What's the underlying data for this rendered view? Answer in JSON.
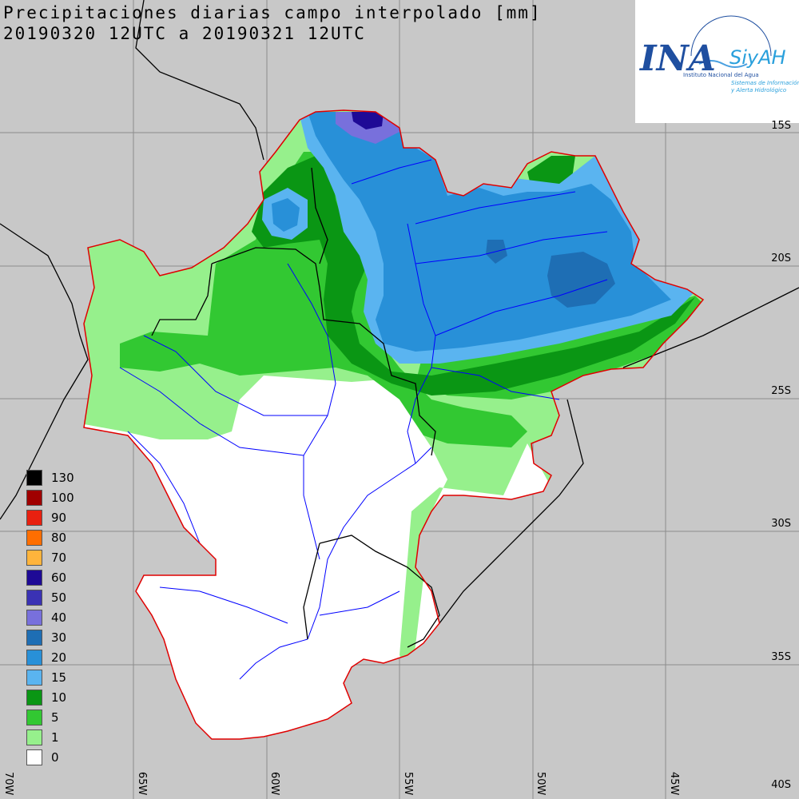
{
  "title_line1": "Precipitaciones diarias campo interpolado [mm]",
  "title_line2": "20190320 12UTC a 20190321 12UTC",
  "logo": {
    "main": "INA",
    "brand": "SiyAH",
    "line1": "Instituto Nacional del Agua",
    "line2": "Sistemas de Información",
    "line3": "y Alerta Hidrológico",
    "color": "#1f4fa0"
  },
  "legend": [
    {
      "label": "130",
      "color": "#000000"
    },
    {
      "label": "100",
      "color": "#a00000"
    },
    {
      "label": "90",
      "color": "#e82010"
    },
    {
      "label": "80",
      "color": "#ff6e00"
    },
    {
      "label": "70",
      "color": "#ffb43c"
    },
    {
      "label": "60",
      "color": "#1e0a96"
    },
    {
      "label": "50",
      "color": "#3a32b4"
    },
    {
      "label": "40",
      "color": "#7870dc"
    },
    {
      "label": "30",
      "color": "#1e6eb4"
    },
    {
      "label": "20",
      "color": "#2890d8"
    },
    {
      "label": "15",
      "color": "#5ab4f0"
    },
    {
      "label": "10",
      "color": "#0a9614"
    },
    {
      "label": "5",
      "color": "#32c832"
    },
    {
      "label": "1",
      "color": "#96f08c"
    },
    {
      "label": "0",
      "color": "#ffffff"
    }
  ],
  "lat_labels": [
    "15S",
    "20S",
    "25S",
    "30S",
    "35S",
    "40S"
  ],
  "lon_labels": [
    "70W",
    "65W",
    "60W",
    "55W",
    "50W",
    "45W"
  ],
  "colors": {
    "background": "#c8c8c8",
    "grid": "#8c8c8c",
    "border": "#e00000",
    "rivers": "#0000ff",
    "boundaries": "#000000"
  }
}
